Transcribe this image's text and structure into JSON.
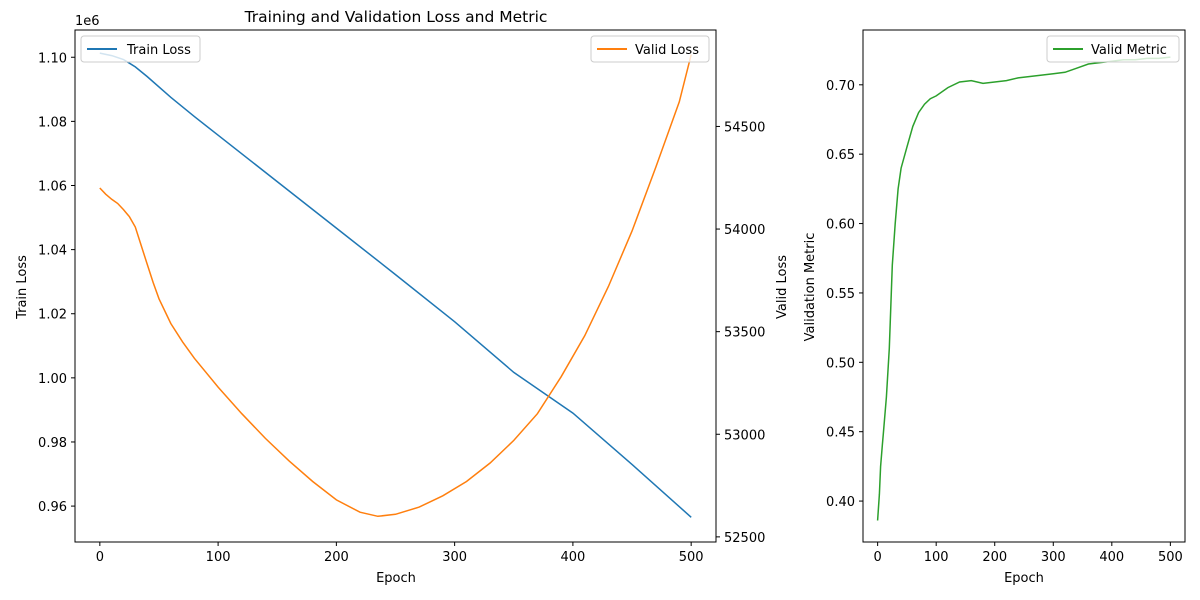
{
  "colors": {
    "train": "#1f77b4",
    "valid": "#ff7f0e",
    "metric": "#2ca02c"
  },
  "chart_data": [
    {
      "type": "line",
      "title": "Training and Validation Loss and Metric",
      "xlabel": "Epoch",
      "ylabel": "Train Loss",
      "y2label": "Valid Loss",
      "offset_text": "1e6",
      "xlim": [
        -21,
        521
      ],
      "ylim": [
        0.9488,
        1.1085
      ],
      "y2lim": [
        52475,
        54970
      ],
      "xticks": [
        0,
        100,
        200,
        300,
        400,
        500
      ],
      "yticks": [
        0.96,
        0.98,
        1.0,
        1.02,
        1.04,
        1.06,
        1.08,
        1.1
      ],
      "ytick_labels": [
        "0.96",
        "0.98",
        "1.00",
        "1.02",
        "1.04",
        "1.06",
        "1.08",
        "1.10"
      ],
      "y2ticks": [
        52500,
        53000,
        53500,
        54000,
        54500
      ],
      "legend_left": "upper left",
      "legend_right": "upper right",
      "series": [
        {
          "name": "Train Loss",
          "axis": "left",
          "color": "#1f77b4",
          "points": [
            [
              0,
              1.1013
            ],
            [
              10,
              1.1005
            ],
            [
              20,
              1.0993
            ],
            [
              30,
              1.097
            ],
            [
              40,
              1.094
            ],
            [
              60,
              1.0875
            ],
            [
              80,
              1.0815
            ],
            [
              100,
              1.0757
            ],
            [
              150,
              1.0612
            ],
            [
              200,
              1.0467
            ],
            [
              250,
              1.0322
            ],
            [
              300,
              1.0175
            ],
            [
              350,
              1.0017
            ],
            [
              400,
              0.989
            ],
            [
              450,
              0.973
            ],
            [
              500,
              0.9565
            ]
          ]
        },
        {
          "name": "Valid Loss",
          "axis": "right",
          "color": "#ff7f0e",
          "points": [
            [
              0,
              54200
            ],
            [
              5,
              54170
            ],
            [
              10,
              54145
            ],
            [
              15,
              54125
            ],
            [
              20,
              54095
            ],
            [
              25,
              54060
            ],
            [
              30,
              54010
            ],
            [
              35,
              53920
            ],
            [
              40,
              53830
            ],
            [
              45,
              53740
            ],
            [
              50,
              53660
            ],
            [
              60,
              53540
            ],
            [
              70,
              53450
            ],
            [
              80,
              53370
            ],
            [
              100,
              53230
            ],
            [
              120,
              53100
            ],
            [
              140,
              52980
            ],
            [
              160,
              52870
            ],
            [
              180,
              52770
            ],
            [
              200,
              52680
            ],
            [
              220,
              52620
            ],
            [
              235,
              52600
            ],
            [
              250,
              52610
            ],
            [
              270,
              52645
            ],
            [
              290,
              52700
            ],
            [
              310,
              52770
            ],
            [
              330,
              52860
            ],
            [
              350,
              52970
            ],
            [
              370,
              53100
            ],
            [
              390,
              53280
            ],
            [
              410,
              53480
            ],
            [
              430,
              53720
            ],
            [
              450,
              53990
            ],
            [
              470,
              54300
            ],
            [
              490,
              54620
            ],
            [
              500,
              54850
            ]
          ]
        }
      ]
    },
    {
      "type": "line",
      "title": "",
      "xlabel": "Epoch",
      "ylabel": "Validation Metric",
      "xlim": [
        -25,
        525
      ],
      "ylim": [
        0.3705,
        0.7395
      ],
      "xticks": [
        0,
        100,
        200,
        300,
        400,
        500
      ],
      "yticks": [
        0.4,
        0.45,
        0.5,
        0.55,
        0.6,
        0.65,
        0.7
      ],
      "ytick_labels": [
        "0.40",
        "0.45",
        "0.50",
        "0.55",
        "0.60",
        "0.65",
        "0.70"
      ],
      "legend": "upper right",
      "series": [
        {
          "name": "Valid Metric",
          "color": "#2ca02c",
          "points": [
            [
              0,
              0.386
            ],
            [
              3,
              0.405
            ],
            [
              5,
              0.425
            ],
            [
              8,
              0.44
            ],
            [
              10,
              0.45
            ],
            [
              15,
              0.475
            ],
            [
              20,
              0.51
            ],
            [
              25,
              0.57
            ],
            [
              30,
              0.6
            ],
            [
              35,
              0.625
            ],
            [
              40,
              0.64
            ],
            [
              50,
              0.655
            ],
            [
              60,
              0.67
            ],
            [
              70,
              0.68
            ],
            [
              80,
              0.686
            ],
            [
              90,
              0.69
            ],
            [
              100,
              0.692
            ],
            [
              120,
              0.698
            ],
            [
              140,
              0.702
            ],
            [
              160,
              0.703
            ],
            [
              180,
              0.701
            ],
            [
              200,
              0.702
            ],
            [
              220,
              0.703
            ],
            [
              240,
              0.705
            ],
            [
              260,
              0.706
            ],
            [
              280,
              0.707
            ],
            [
              300,
              0.708
            ],
            [
              320,
              0.709
            ],
            [
              340,
              0.712
            ],
            [
              360,
              0.715
            ],
            [
              380,
              0.716
            ],
            [
              400,
              0.717
            ],
            [
              420,
              0.718
            ],
            [
              440,
              0.718
            ],
            [
              460,
              0.719
            ],
            [
              480,
              0.719
            ],
            [
              500,
              0.72
            ]
          ]
        }
      ]
    }
  ]
}
